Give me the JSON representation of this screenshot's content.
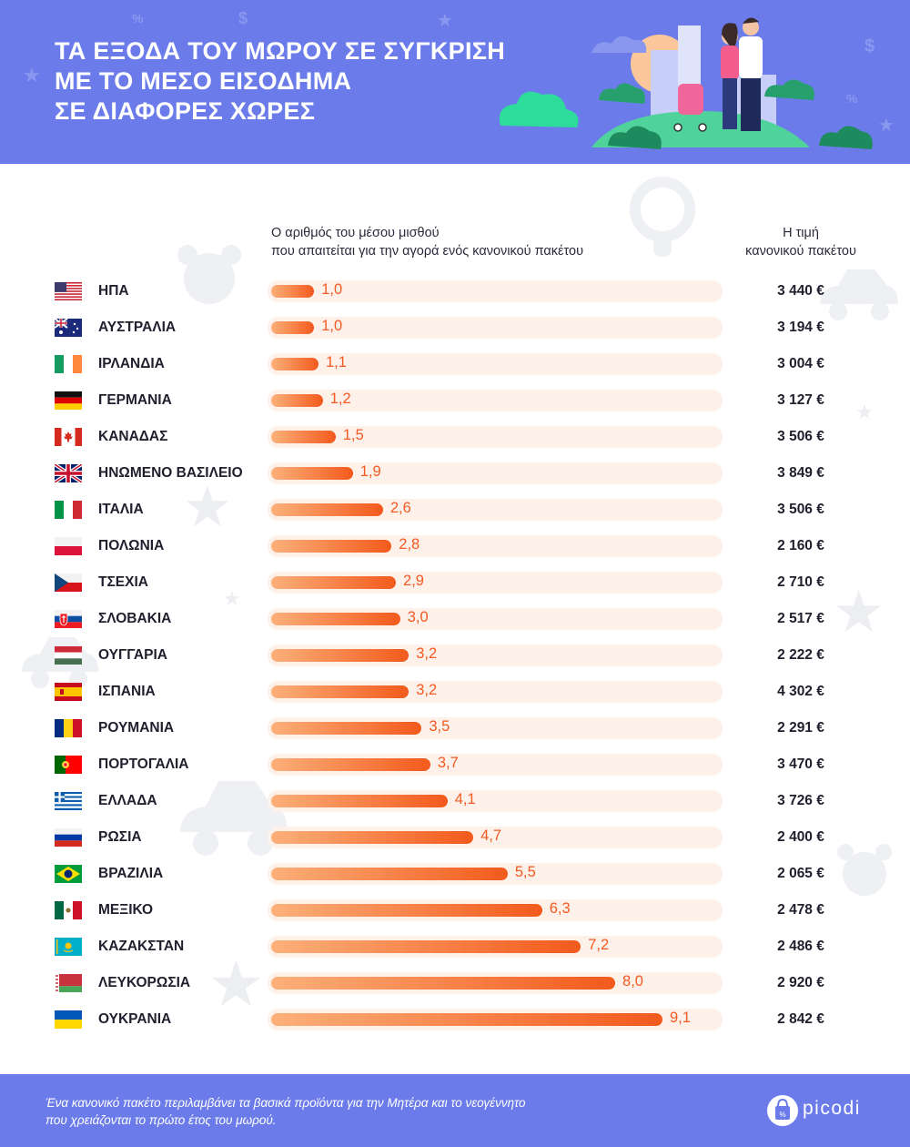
{
  "title_lines": [
    "ΤΑ ΕΞΟΔΑ ΤΟΥ ΜΩΡΟΥ ΣΕ ΣΥΓΚΡΙΣΗ",
    "ΜΕ ΤΟ ΜΕΣΟ ΕΙΣΟΔΗΜΑ",
    "ΣΕ ΔΙΑΦΟΡΕΣ ΧΩΡΕΣ"
  ],
  "columns": {
    "mid_header": [
      "Ο αριθμός του μέσου μισθού",
      "που απαιτείται για την αγορά ενός κανονικού πακέτου"
    ],
    "right_header": [
      "Η τιμή",
      "κανονικού πακέτου"
    ]
  },
  "footer": {
    "note": [
      "Ένα κανονικό πακέτο περιλαμβάνει τα βασικά προϊόντα για την Μητέρα και το νεογέννητο",
      "που χρειάζονται το πρώτο έτος του μωρού."
    ],
    "brand": "picodi"
  },
  "colors": {
    "header_bg": "#6b7cea",
    "bar_start": "#fcb07a",
    "bar_end": "#f25a1c",
    "value_text": "#f15a22",
    "track": "#fdf1ea"
  },
  "chart_data": {
    "type": "bar",
    "orientation": "horizontal",
    "categories": [
      "ΗΠΑ",
      "ΑΥΣΤΡΑΛΙΑ",
      "ΙΡΛΑΝΔΙΑ",
      "ΓΕΡΜΑΝΙΑ",
      "ΚΑΝΑΔΑΣ",
      "ΗΝΩΜΕΝΟ ΒΑΣΙΛΕΙΟ",
      "ΙΤΑΛΙΑ",
      "ΠΟΛΩΝΙΑ",
      "ΤΣΕΧΙΑ",
      "ΣΛΟΒΑΚΙΑ",
      "ΟΥΓΓΑΡΙΑ",
      "ΙΣΠΑΝΙΑ",
      "ΡΟΥΜΑΝΙΑ",
      "ΠΟΡΤΟΓΑΛΙΑ",
      "ΕΛΛΑΔΑ",
      "ΡΩΣΙΑ",
      "ΒΡΑΖΙΛΙΑ",
      "ΜΕΞΙΚΟ",
      "ΚΑΖΑΚΣΤΑΝ",
      "ΛΕΥΚΟΡΩΣΙΑ",
      "ΟΥΚΡΑΝΙΑ"
    ],
    "values": [
      1.0,
      1.0,
      1.1,
      1.2,
      1.5,
      1.9,
      2.6,
      2.8,
      2.9,
      3.0,
      3.2,
      3.2,
      3.5,
      3.7,
      4.1,
      4.7,
      5.5,
      6.3,
      7.2,
      8.0,
      9.1
    ],
    "value_labels": [
      "1,0",
      "1,0",
      "1,1",
      "1,2",
      "1,5",
      "1,9",
      "2,6",
      "2,8",
      "2,9",
      "3,0",
      "3,2",
      "3,2",
      "3,5",
      "3,7",
      "4,1",
      "4,7",
      "5,5",
      "6,3",
      "7,2",
      "8,0",
      "9,1"
    ],
    "prices": [
      "3 440 €",
      "3 194 €",
      "3 004 €",
      "3 127 €",
      "3 506 €",
      "3 849 €",
      "3 506 €",
      "2 160 €",
      "2 710 €",
      "2 517 €",
      "2 222 €",
      "4 302 €",
      "2 291 €",
      "3 470 €",
      "3 726 €",
      "2 400 €",
      "2 065 €",
      "2 478 €",
      "2 486 €",
      "2 920 €",
      "2 842 €"
    ],
    "flags": [
      "us",
      "au",
      "ie",
      "de",
      "ca",
      "gb",
      "it",
      "pl",
      "cz",
      "sk",
      "hu",
      "es",
      "ro",
      "pt",
      "gr",
      "ru",
      "br",
      "mx",
      "kz",
      "by",
      "ua"
    ],
    "xlim": [
      0,
      9.1
    ],
    "grid": false,
    "legend": "none"
  }
}
